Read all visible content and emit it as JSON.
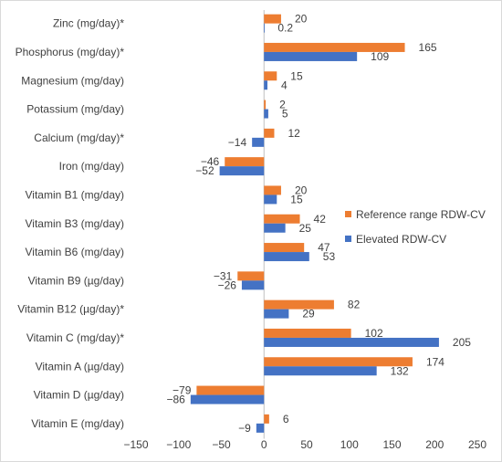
{
  "chart_data": {
    "type": "bar",
    "orientation": "horizontal",
    "categories": [
      "Zinc (mg/day)*",
      "Phosphorus (mg/day)*",
      "Magnesium (mg/day)",
      "Potassium (mg/day)",
      "Calcium (mg/day)*",
      "Iron (mg/day)",
      "Vitamin B1 (mg/day)",
      "Vitamin B3 (mg/day)",
      "Vitamin  B6 (mg/day)",
      "Vitamin B9 (µg/day)",
      "Vitamin  B12 (µg/day)*",
      "Vitamin C (mg/day)*",
      "Vitamin A (µg/day)",
      "Vitamin  D (µg/day)",
      "Vitamin  E (mg/day)"
    ],
    "series": [
      {
        "name": "Reference range  RDW-CV",
        "color": "#ED7D31",
        "values": [
          20,
          165,
          15,
          2,
          12,
          -46,
          20,
          42,
          47,
          -31,
          82,
          102,
          174,
          -79,
          6
        ],
        "labels": [
          "20",
          "165",
          "15",
          "2",
          "12",
          "−46",
          "20",
          "42",
          "47",
          "−31",
          "82",
          "102",
          "174",
          "−79",
          "6"
        ]
      },
      {
        "name": "Elevated RDW-CV",
        "color": "#4472C4",
        "values": [
          0.2,
          109,
          4,
          5,
          -14,
          -52,
          15,
          25,
          53,
          -26,
          29,
          205,
          132,
          -86,
          -9
        ],
        "labels": [
          "0.2",
          "109",
          "4",
          "5",
          "−14",
          "−52",
          "15",
          "25",
          "53",
          "−26",
          "29",
          "205",
          "132",
          "−86",
          "−9"
        ]
      }
    ],
    "xlim": [
      -150,
      250
    ],
    "xticks": [
      -150,
      -100,
      -50,
      0,
      50,
      100,
      150,
      200,
      250
    ],
    "xtick_labels": [
      "−150",
      "−100",
      "−50",
      "0",
      "50",
      "100",
      "150",
      "200",
      "250"
    ],
    "legend_position": "right",
    "grid": false
  }
}
